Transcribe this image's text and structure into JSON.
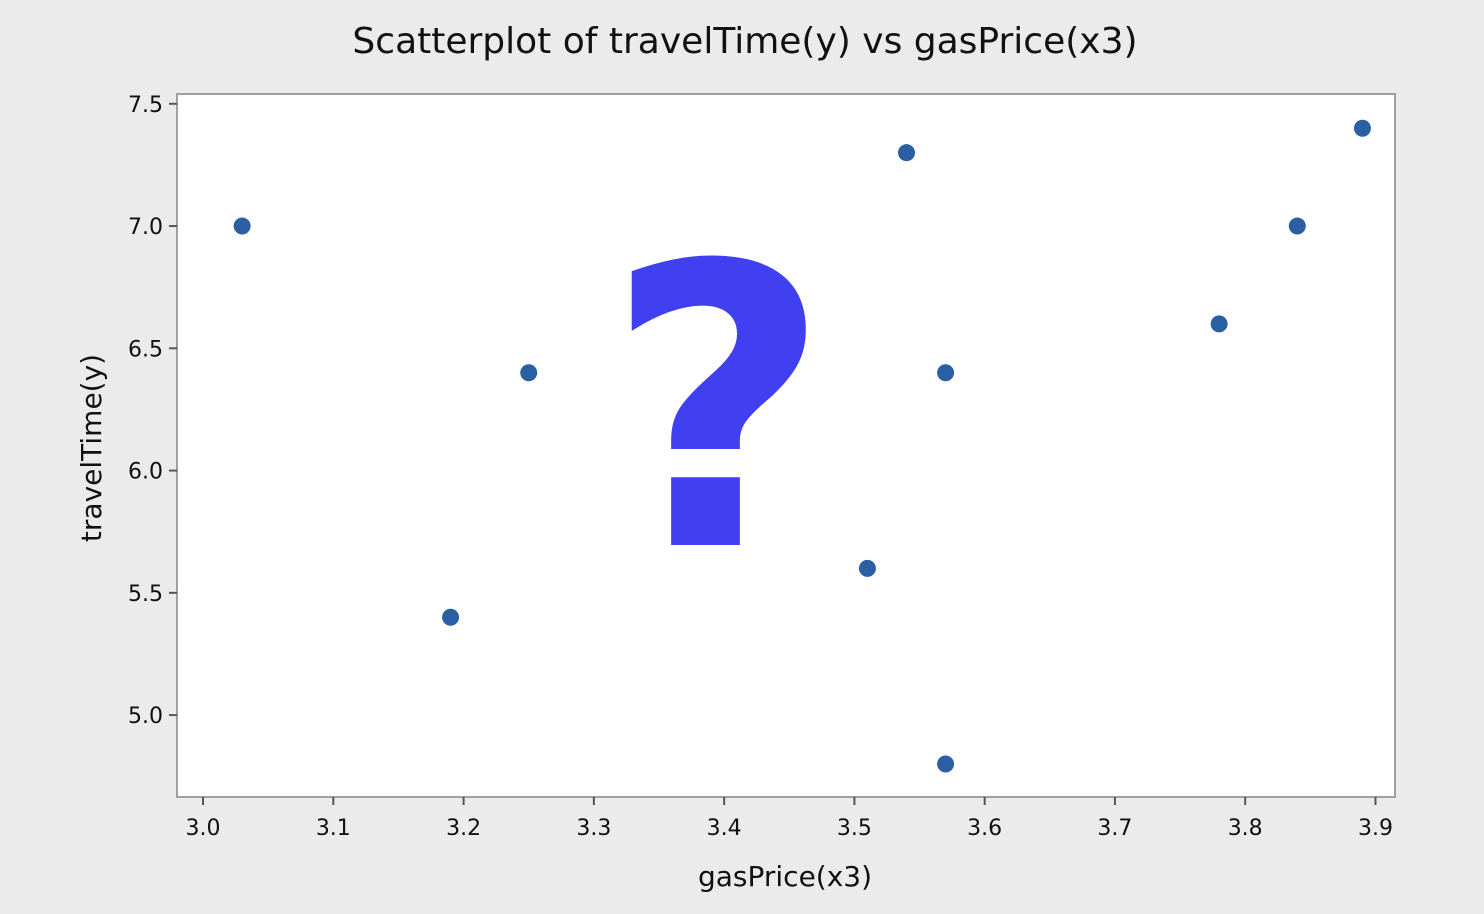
{
  "chart_data": {
    "type": "scatter",
    "title": "Scatterplot of travelTime(y) vs gasPrice(x3)",
    "xlabel": "gasPrice(x3)",
    "ylabel": "travelTime(y)",
    "xlim": [
      2.98,
      3.915
    ],
    "ylim": [
      4.665,
      7.54
    ],
    "x_ticks": [
      3.0,
      3.1,
      3.2,
      3.3,
      3.4,
      3.5,
      3.6,
      3.7,
      3.8,
      3.9
    ],
    "x_tick_labels": [
      "3.0",
      "3.1",
      "3.2",
      "3.3",
      "3.4",
      "3.5",
      "3.6",
      "3.7",
      "3.8",
      "3.9"
    ],
    "y_ticks": [
      5.0,
      5.5,
      6.0,
      6.5,
      7.0,
      7.5
    ],
    "y_tick_labels": [
      "5.0",
      "5.5",
      "6.0",
      "6.5",
      "7.0",
      "7.5"
    ],
    "grid": false,
    "series": [
      {
        "points": [
          {
            "x": 3.03,
            "y": 7.0
          },
          {
            "x": 3.19,
            "y": 5.4
          },
          {
            "x": 3.25,
            "y": 6.4
          },
          {
            "x": 3.51,
            "y": 5.6
          },
          {
            "x": 3.54,
            "y": 7.3
          },
          {
            "x": 3.57,
            "y": 6.4
          },
          {
            "x": 3.57,
            "y": 4.8
          },
          {
            "x": 3.78,
            "y": 6.6
          },
          {
            "x": 3.84,
            "y": 7.0
          },
          {
            "x": 3.89,
            "y": 7.4
          }
        ]
      }
    ],
    "overlay_glyph": "?"
  },
  "colors": {
    "background": "#ebebeb",
    "plot_area": "#ffffff",
    "frame": "#a0a0a0",
    "axis": "#555555",
    "point": "#2a5fa3",
    "overlay": "#4040f0"
  }
}
